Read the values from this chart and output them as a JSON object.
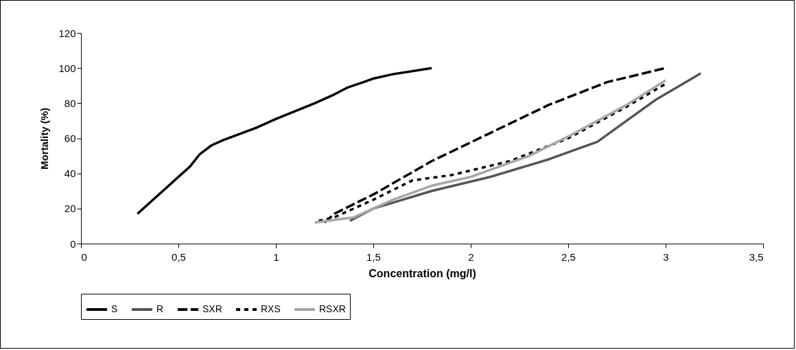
{
  "chart_data": {
    "type": "line",
    "xlabel": "Concentration (mg/l)",
    "ylabel": "Mortality (%)",
    "xlim": [
      0,
      3.5
    ],
    "xticks": [
      0,
      {
        "value": 0.5,
        "label": "0,5"
      },
      1,
      {
        "value": 1.5,
        "label": "1,5"
      },
      2,
      {
        "value": 2.5,
        "label": "2,5"
      },
      3,
      {
        "value": 3.5,
        "label": "3,5"
      }
    ],
    "ylim": [
      0,
      120
    ],
    "yticks": [
      0,
      20,
      40,
      60,
      80,
      100,
      120
    ],
    "grid": false,
    "legend": "bottom",
    "marker": "none",
    "series": [
      {
        "name": "S",
        "color": "#000000",
        "line_style": "solid",
        "x": [
          0.29,
          0.37,
          0.43,
          0.5,
          0.56,
          0.61,
          0.67,
          0.73,
          0.9,
          1.0,
          1.2,
          1.3,
          1.37,
          1.45,
          1.5,
          1.6,
          1.8
        ],
        "values": [
          17,
          25,
          31,
          38,
          44,
          51,
          56,
          59,
          66,
          71,
          80,
          85,
          89,
          92,
          94,
          96.5,
          100
        ]
      },
      {
        "name": "R",
        "color": "#555555",
        "line_style": "solid",
        "x": [
          1.38,
          1.5,
          1.8,
          2.1,
          2.4,
          2.5,
          2.65,
          2.8,
          2.95,
          3.18
        ],
        "values": [
          13,
          20,
          30,
          38,
          48,
          52,
          58,
          70,
          82,
          97
        ]
      },
      {
        "name": "SXR",
        "color": "#000000",
        "line_style": "dashed",
        "x": [
          1.25,
          1.3,
          1.5,
          1.8,
          2.1,
          2.4,
          2.7,
          3.0
        ],
        "values": [
          12,
          17,
          28,
          47,
          63,
          79,
          92,
          100
        ]
      },
      {
        "name": "RXS",
        "color": "#000000",
        "line_style": "dotted",
        "x": [
          1.22,
          1.3,
          1.4,
          1.5,
          1.7,
          1.9,
          2.2,
          2.5,
          2.8,
          3.0
        ],
        "values": [
          13,
          15,
          20,
          25,
          36,
          39,
          47,
          60,
          78,
          91
        ]
      },
      {
        "name": "RSXR",
        "color": "#a6a6a6",
        "line_style": "solid",
        "x": [
          1.2,
          1.4,
          1.6,
          1.8,
          2.0,
          2.3,
          2.5,
          2.8,
          3.0
        ],
        "values": [
          12,
          15,
          25,
          33,
          38,
          50,
          61,
          79,
          93
        ]
      }
    ]
  }
}
